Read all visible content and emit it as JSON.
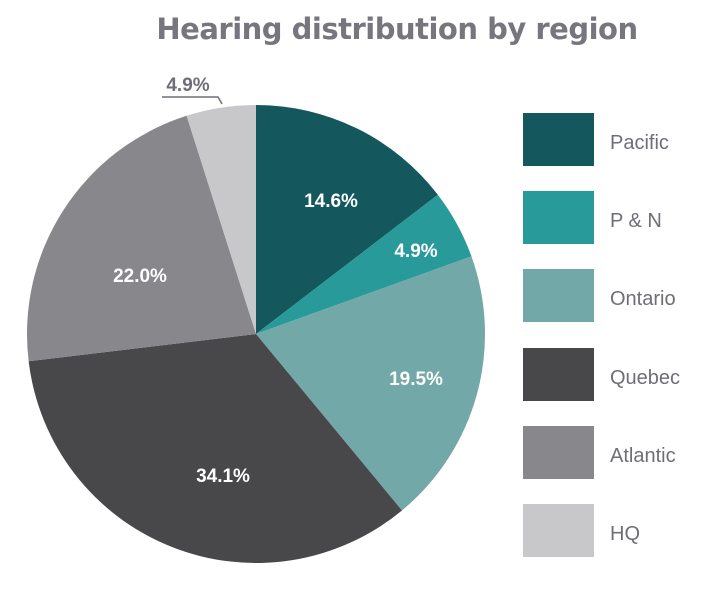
{
  "chart_data": {
    "type": "pie",
    "title": "Hearing distribution by region",
    "categories": [
      "Pacific",
      "P & N",
      "Ontario",
      "Quebec",
      "Atlantic",
      "HQ"
    ],
    "values": [
      14.6,
      4.9,
      19.5,
      34.1,
      22.0,
      4.9
    ],
    "labels": [
      "14.6%",
      "4.9%",
      "19.5%",
      "34.1%",
      "22.0%",
      "4.9%"
    ],
    "colors": [
      "#14585e",
      "#279a99",
      "#73a8a8",
      "#48484b",
      "#88888c",
      "#c8c8ca"
    ],
    "start_angle": "12 o'clock, clockwise",
    "legend_position": "right",
    "annotations": [
      "HQ 4.9% label placed outside slice with leader line"
    ]
  },
  "title": "Hearing distribution by region",
  "legend": [
    {
      "label": "Pacific",
      "color": "#14585e"
    },
    {
      "label": "P & N",
      "color": "#279a99"
    },
    {
      "label": "Ontario",
      "color": "#73a8a8"
    },
    {
      "label": "Quebec",
      "color": "#48484b"
    },
    {
      "label": "Atlantic",
      "color": "#88888c"
    },
    {
      "label": "HQ",
      "color": "#c8c8ca"
    }
  ],
  "slice_labels": {
    "pacific": "14.6%",
    "pn": "4.9%",
    "ontario": "19.5%",
    "quebec": "34.1%",
    "atlantic": "22.0%",
    "hq": "4.9%"
  }
}
